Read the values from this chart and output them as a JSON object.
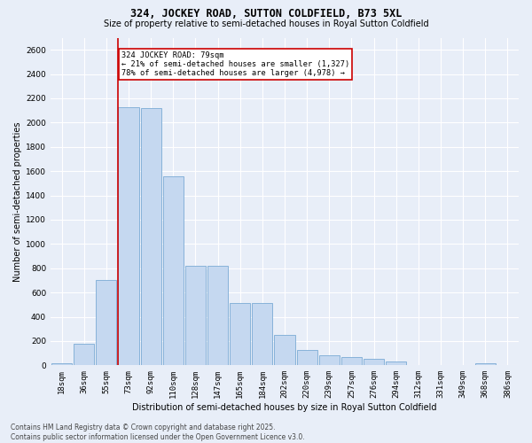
{
  "title": "324, JOCKEY ROAD, SUTTON COLDFIELD, B73 5XL",
  "subtitle": "Size of property relative to semi-detached houses in Royal Sutton Coldfield",
  "xlabel": "Distribution of semi-detached houses by size in Royal Sutton Coldfield",
  "ylabel": "Number of semi-detached properties",
  "bar_color": "#c5d8f0",
  "bar_edge_color": "#7aaad4",
  "bg_color": "#e8eef8",
  "grid_color": "#ffffff",
  "categories": [
    "18sqm",
    "36sqm",
    "55sqm",
    "73sqm",
    "92sqm",
    "110sqm",
    "128sqm",
    "147sqm",
    "165sqm",
    "184sqm",
    "202sqm",
    "220sqm",
    "239sqm",
    "257sqm",
    "276sqm",
    "294sqm",
    "312sqm",
    "331sqm",
    "349sqm",
    "368sqm",
    "386sqm"
  ],
  "values": [
    20,
    175,
    700,
    2130,
    2120,
    1560,
    820,
    820,
    510,
    510,
    250,
    125,
    85,
    70,
    55,
    35,
    5,
    0,
    0,
    20,
    0
  ],
  "ylim": [
    0,
    2700
  ],
  "yticks": [
    0,
    200,
    400,
    600,
    800,
    1000,
    1200,
    1400,
    1600,
    1800,
    2000,
    2200,
    2400,
    2600
  ],
  "red_line_bin_index": 3,
  "annotation_text": "324 JOCKEY ROAD: 79sqm\n← 21% of semi-detached houses are smaller (1,327)\n78% of semi-detached houses are larger (4,978) →",
  "footnote_line1": "Contains HM Land Registry data © Crown copyright and database right 2025.",
  "footnote_line2": "Contains public sector information licensed under the Open Government Licence v3.0.",
  "annotation_box_color": "#ffffff",
  "annotation_box_edge": "#cc0000",
  "red_line_color": "#cc0000",
  "title_fontsize": 8.5,
  "subtitle_fontsize": 7.0,
  "axis_label_fontsize": 7.0,
  "tick_fontsize": 6.5,
  "annotation_fontsize": 6.2,
  "footnote_fontsize": 5.5
}
